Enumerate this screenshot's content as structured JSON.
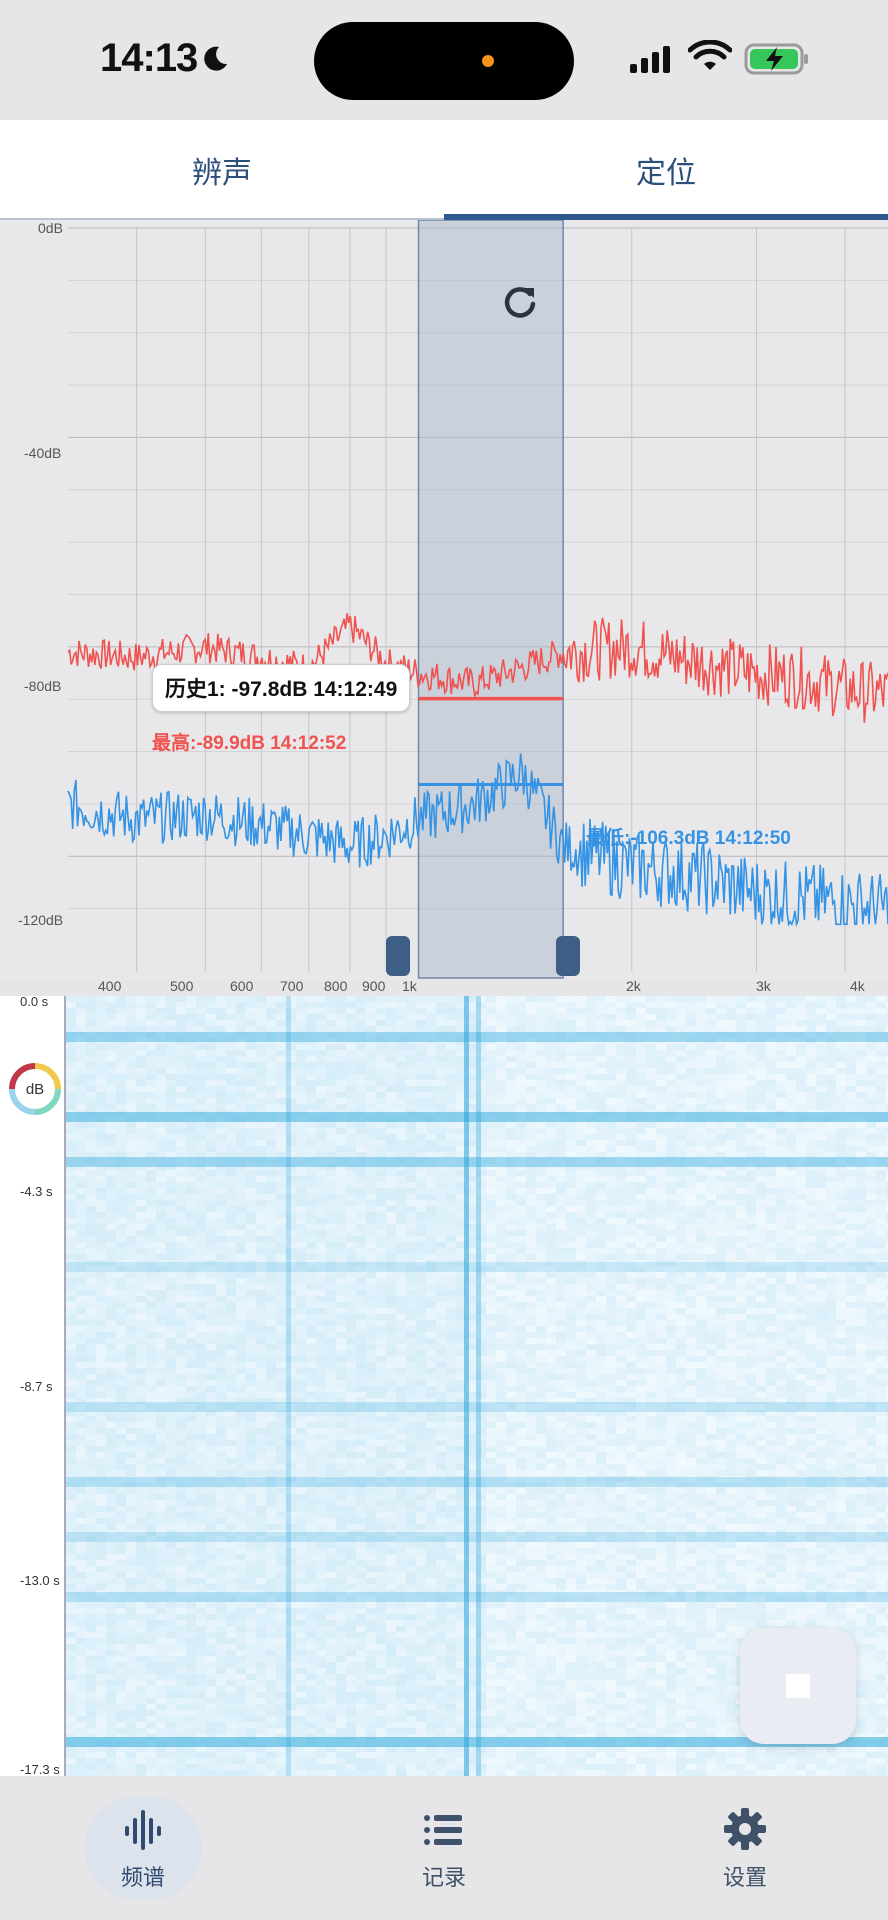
{
  "status_bar": {
    "time": "14:13"
  },
  "tabs": [
    {
      "label": "辨声",
      "active": false
    },
    {
      "label": "定位",
      "active": true
    }
  ],
  "spectrum": {
    "db_ticks": [
      "0dB",
      "-40dB",
      "-80dB",
      "-120dB"
    ],
    "freq_ticks": [
      "400",
      "500",
      "600",
      "700",
      "800",
      "900",
      "1k",
      "2k",
      "3k",
      "4k"
    ],
    "tooltip": "历史1: -97.8dB 14:12:49",
    "max_label": "最高:-89.9dB 14:12:52",
    "min_label": "最低:-106.3dB 14:12:50",
    "colors": {
      "max": "#f0524f",
      "min": "#3493e4",
      "selection": "#5f7ea6"
    }
  },
  "chart_data": {
    "type": "line",
    "xlabel": "",
    "ylabel": "",
    "ylim": [
      -135,
      0
    ],
    "x_scale": "log",
    "x_ticks": [
      "400",
      "500",
      "600",
      "700",
      "800",
      "900",
      "1k",
      "2k",
      "3k",
      "4k"
    ],
    "y_ticks": [
      "0dB",
      "-40dB",
      "-80dB",
      "-120dB"
    ],
    "selection_hz": [
      1000,
      1600
    ],
    "series": [
      {
        "color": "#f0524f",
        "x": [
          320,
          400,
          500,
          600,
          700,
          800,
          900,
          1000,
          1200,
          1400,
          1600,
          2000,
          2500,
          3000,
          3500,
          4000,
          4500
        ],
        "values": [
          -81,
          -82,
          -80,
          -82,
          -84,
          -76,
          -83,
          -85,
          -87,
          -84,
          -81,
          -80,
          -83,
          -85,
          -86,
          -88,
          -89
        ]
      },
      {
        "color": "#3493e4",
        "x": [
          320,
          400,
          500,
          600,
          700,
          800,
          900,
          1000,
          1200,
          1400,
          1600,
          2000,
          2500,
          3000,
          3500,
          4000,
          4500
        ],
        "values": [
          -110,
          -113,
          -112,
          -114,
          -116,
          -118,
          -116,
          -113,
          -110,
          -104,
          -118,
          -122,
          -124,
          -127,
          -128,
          -129,
          -130
        ]
      }
    ],
    "reference_lines": [
      {
        "name": "最高",
        "value": -89.9
      },
      {
        "name": "最低",
        "value": -106.3
      }
    ]
  },
  "waterfall": {
    "time_ticks": [
      "0.0 s",
      "-4.3 s",
      "-8.7 s",
      "-13.0 s",
      "-17.3 s"
    ],
    "badge": "dB"
  },
  "bottom_nav": [
    {
      "label": "频谱",
      "icon": "waveform-icon",
      "active": true
    },
    {
      "label": "记录",
      "icon": "list-icon",
      "active": false
    },
    {
      "label": "设置",
      "icon": "gear-icon",
      "active": false
    }
  ]
}
